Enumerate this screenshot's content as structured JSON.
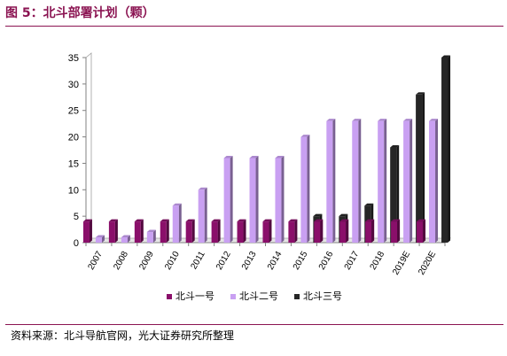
{
  "figure": {
    "title": "图 5：北斗部署计划（颗）",
    "source": "资料来源：北斗导航官网，光大证券研究所整理"
  },
  "chart_data": {
    "type": "bar",
    "title": "",
    "xlabel": "",
    "ylabel": "",
    "categories": [
      "2007",
      "2008",
      "2009",
      "2010",
      "2011",
      "2012",
      "2013",
      "2014",
      "2015",
      "2016",
      "2017",
      "2018",
      "2019E",
      "2020E"
    ],
    "series": [
      {
        "name": "北斗一号",
        "color": "#8a0f6a",
        "values": [
          4,
          4,
          4,
          4,
          4,
          4,
          4,
          4,
          4,
          4,
          4,
          4,
          4,
          4
        ]
      },
      {
        "name": "北斗二号",
        "color": "#c9a0f2",
        "values": [
          1,
          1,
          2,
          7,
          10,
          16,
          16,
          16,
          20,
          23,
          23,
          23,
          23,
          23
        ]
      },
      {
        "name": "北斗三号",
        "color": "#262626",
        "values": [
          0,
          0,
          0,
          0,
          0,
          0,
          0,
          0,
          5,
          5,
          7,
          18,
          28,
          35
        ]
      }
    ],
    "y_ticks": [
      0,
      5,
      10,
      15,
      20,
      25,
      30,
      35
    ],
    "ylim": [
      0,
      35
    ],
    "grid": false,
    "legend_position": "bottom"
  }
}
